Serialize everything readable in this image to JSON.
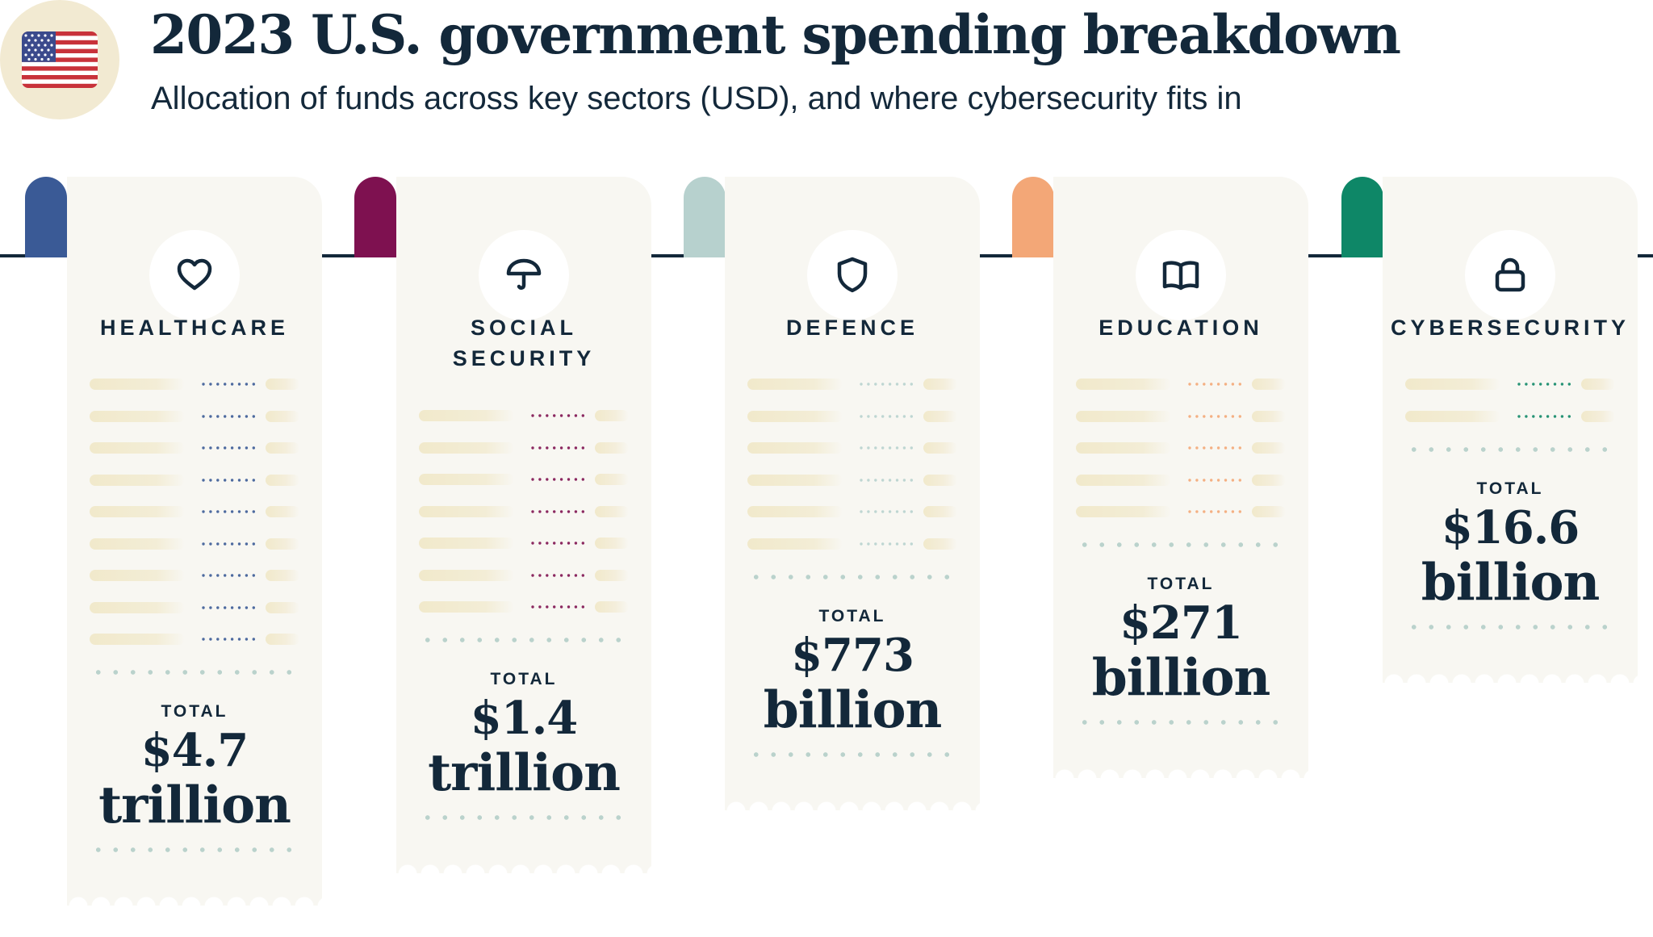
{
  "header": {
    "title": "2023 U.S. government spending breakdown",
    "subtitle": "Allocation of funds across key sectors (USD), and where cybersecurity fits in",
    "flag_icon": "us-flag-icon"
  },
  "chart_data": {
    "type": "bar",
    "title": "2023 U.S. government spending breakdown",
    "subtitle": "Allocation of funds across key sectors (USD), and where cybersecurity fits in",
    "unit": "USD",
    "categories": [
      "HEALTHCARE",
      "SOCIAL SECURITY",
      "DEFENCE",
      "EDUCATION",
      "CYBERSECURITY"
    ],
    "values_billion_usd": [
      4700,
      1400,
      773,
      271,
      16.6
    ],
    "total_label": "TOTAL",
    "totals_text": [
      [
        "$4.7",
        "trillion"
      ],
      [
        "$1.4",
        "trillion"
      ],
      [
        "$773",
        "billion"
      ],
      [
        "$271",
        "billion"
      ],
      [
        "$16.6",
        "billion"
      ]
    ],
    "colors": [
      "#3a5a96",
      "#7e1150",
      "#b7d1ce",
      "#f3a777",
      "#0e8767"
    ],
    "icons": [
      "heart-icon",
      "umbrella-icon",
      "shield-icon",
      "book-icon",
      "lock-icon"
    ]
  }
}
